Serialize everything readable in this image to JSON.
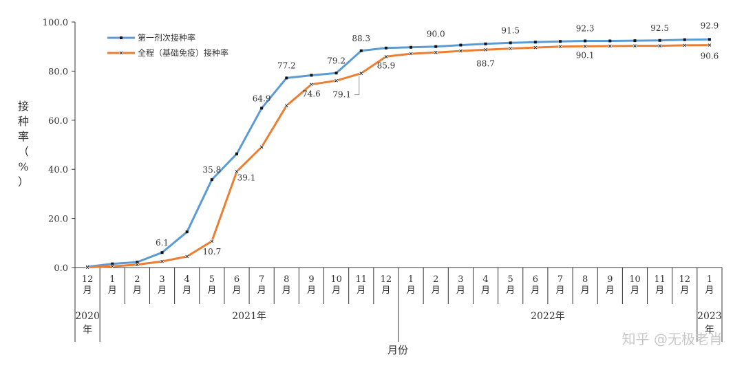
{
  "watermark": "知乎 @无极老肖",
  "chart_data": {
    "type": "line",
    "title": "",
    "xlabel": "月份",
    "ylabel": "接种率（%）",
    "ylim": [
      0,
      100
    ],
    "yticks": [
      "0.0",
      "20.0",
      "40.0",
      "60.0",
      "80.0",
      "100.0"
    ],
    "categories": [
      "12月",
      "1月",
      "2月",
      "3月",
      "4月",
      "5月",
      "6月",
      "7月",
      "8月",
      "9月",
      "10月",
      "11月",
      "12月",
      "1月",
      "2月",
      "3月",
      "4月",
      "5月",
      "6月",
      "7月",
      "8月",
      "9月",
      "10月",
      "11月",
      "12月",
      "1月"
    ],
    "year_groups": [
      {
        "label": "2020年",
        "start": 0,
        "end": 0
      },
      {
        "label": "2021年",
        "start": 1,
        "end": 12
      },
      {
        "label": "2022年",
        "start": 13,
        "end": 24
      },
      {
        "label": "2023年",
        "start": 25,
        "end": 25
      }
    ],
    "legend_position": "top-left",
    "series": [
      {
        "name": "第一剂次接种率",
        "color": "#5b9bd5",
        "marker": "square",
        "values": [
          0.3,
          1.5,
          2.2,
          6.1,
          14.5,
          35.8,
          46.3,
          64.9,
          77.2,
          78.3,
          79.2,
          88.3,
          89.4,
          89.7,
          90.0,
          90.6,
          91.1,
          91.5,
          91.8,
          92.1,
          92.3,
          92.3,
          92.4,
          92.5,
          92.8,
          92.9
        ]
      },
      {
        "name": "全程（基础免疫）接种率",
        "color": "#ed7d31",
        "marker": "x",
        "values": [
          0.1,
          0.5,
          1.2,
          2.5,
          4.5,
          10.7,
          39.1,
          49.1,
          65.9,
          74.6,
          76.1,
          79.1,
          85.9,
          87.1,
          87.6,
          88.2,
          88.7,
          89.2,
          89.6,
          90.0,
          90.1,
          90.2,
          90.3,
          90.3,
          90.5,
          90.6
        ]
      }
    ],
    "data_labels": [
      {
        "series": 0,
        "index": 3,
        "text": "6.1"
      },
      {
        "series": 0,
        "index": 5,
        "text": "35.8"
      },
      {
        "series": 0,
        "index": 7,
        "text": "64.9"
      },
      {
        "series": 0,
        "index": 8,
        "text": "77.2"
      },
      {
        "series": 0,
        "index": 10,
        "text": "79.2"
      },
      {
        "series": 0,
        "index": 11,
        "text": "88.3"
      },
      {
        "series": 0,
        "index": 14,
        "text": "90.0"
      },
      {
        "series": 0,
        "index": 17,
        "text": "91.5"
      },
      {
        "series": 0,
        "index": 20,
        "text": "92.3"
      },
      {
        "series": 0,
        "index": 23,
        "text": "92.5"
      },
      {
        "series": 0,
        "index": 25,
        "text": "92.9"
      },
      {
        "series": 1,
        "index": 5,
        "text": "10.7"
      },
      {
        "series": 1,
        "index": 6,
        "text": "39.1"
      },
      {
        "series": 1,
        "index": 9,
        "text": "74.6"
      },
      {
        "series": 1,
        "index": 11,
        "text": "79.1"
      },
      {
        "series": 1,
        "index": 12,
        "text": "85.9"
      },
      {
        "series": 1,
        "index": 16,
        "text": "88.7"
      },
      {
        "series": 1,
        "index": 20,
        "text": "90.1"
      },
      {
        "series": 1,
        "index": 25,
        "text": "90.6"
      }
    ]
  }
}
